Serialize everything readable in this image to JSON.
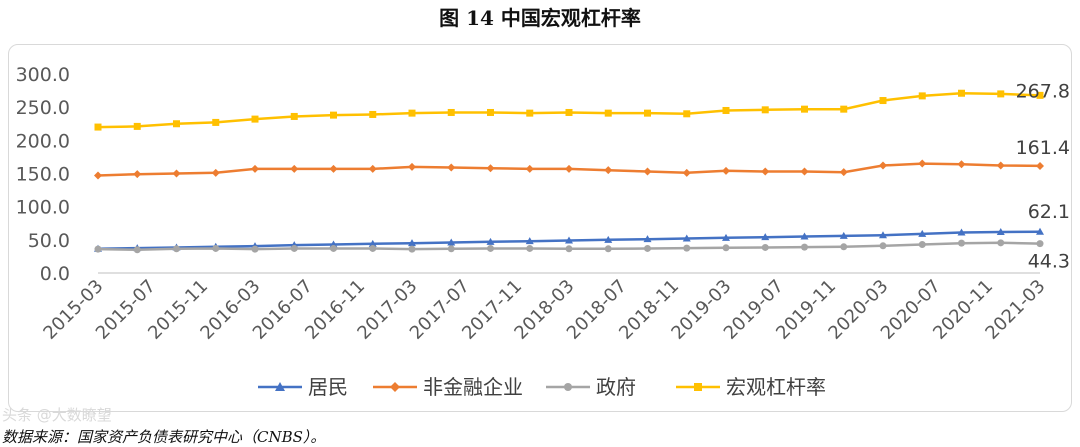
{
  "chart_data": {
    "type": "line",
    "title": "图 14  中国宏观杠杆率",
    "categories": [
      "2015-03",
      "2015-07",
      "2015-11",
      "2016-03",
      "2016-07",
      "2016-11",
      "2017-03",
      "2017-07",
      "2017-11",
      "2018-03",
      "2018-07",
      "2018-11",
      "2019-03",
      "2019-07",
      "2019-11",
      "2020-03",
      "2020-07",
      "2020-11",
      "2021-03"
    ],
    "x": [
      "2015-03",
      "2015-06",
      "2015-09",
      "2015-12",
      "2016-03",
      "2016-06",
      "2016-09",
      "2016-12",
      "2017-03",
      "2017-06",
      "2017-09",
      "2017-12",
      "2018-03",
      "2018-06",
      "2018-09",
      "2018-12",
      "2019-03",
      "2019-06",
      "2019-09",
      "2019-12",
      "2020-03",
      "2020-06",
      "2020-09",
      "2020-12",
      "2021-03"
    ],
    "y_ticks": [
      "300.0",
      "250.0",
      "200.0",
      "150.0",
      "100.0",
      "50.0",
      "0.0"
    ],
    "ylim": [
      0,
      300
    ],
    "legend_position": "bottom",
    "series": [
      {
        "name": "居民",
        "color": "#4472C4",
        "marker": "triangle",
        "values": [
          36.5,
          37.5,
          38.5,
          39.5,
          40.5,
          42.0,
          43.0,
          44.0,
          45.0,
          46.0,
          47.0,
          48.0,
          49.0,
          50.0,
          51.0,
          52.0,
          53.0,
          54.0,
          55.0,
          56.0,
          57.0,
          59.0,
          61.0,
          61.8,
          62.1
        ]
      },
      {
        "name": "非金融企业",
        "color": "#ED7D31",
        "marker": "diamond",
        "values": [
          147,
          149,
          150,
          151,
          157,
          157,
          157,
          157,
          160,
          159,
          158,
          157,
          157,
          155,
          153,
          151,
          154,
          153,
          153,
          152,
          162,
          165,
          164,
          162,
          161.4
        ]
      },
      {
        "name": "政府",
        "color": "#A5A5A5",
        "marker": "circle",
        "values": [
          36.0,
          35.0,
          36.5,
          37.0,
          36.0,
          37.0,
          37.0,
          37.0,
          36.0,
          36.5,
          37.0,
          37.0,
          36.5,
          36.5,
          37.0,
          37.5,
          38.0,
          38.5,
          39.0,
          39.5,
          41.0,
          43.0,
          45.0,
          45.5,
          44.3
        ]
      },
      {
        "name": "宏观杠杆率",
        "color": "#FFC000",
        "marker": "square",
        "values": [
          220,
          221,
          225,
          227,
          232,
          236,
          238,
          239,
          241,
          242,
          242,
          241,
          242,
          241,
          241,
          240,
          245,
          246,
          247,
          247,
          260,
          267,
          271,
          270,
          267.8
        ]
      }
    ],
    "end_labels": [
      "62.1",
      "161.4",
      "44.3",
      "267.8"
    ]
  },
  "source": "数据来源：国家资产负债表研究中心（CNBS）。",
  "watermark": "头条 @大数瞭望"
}
